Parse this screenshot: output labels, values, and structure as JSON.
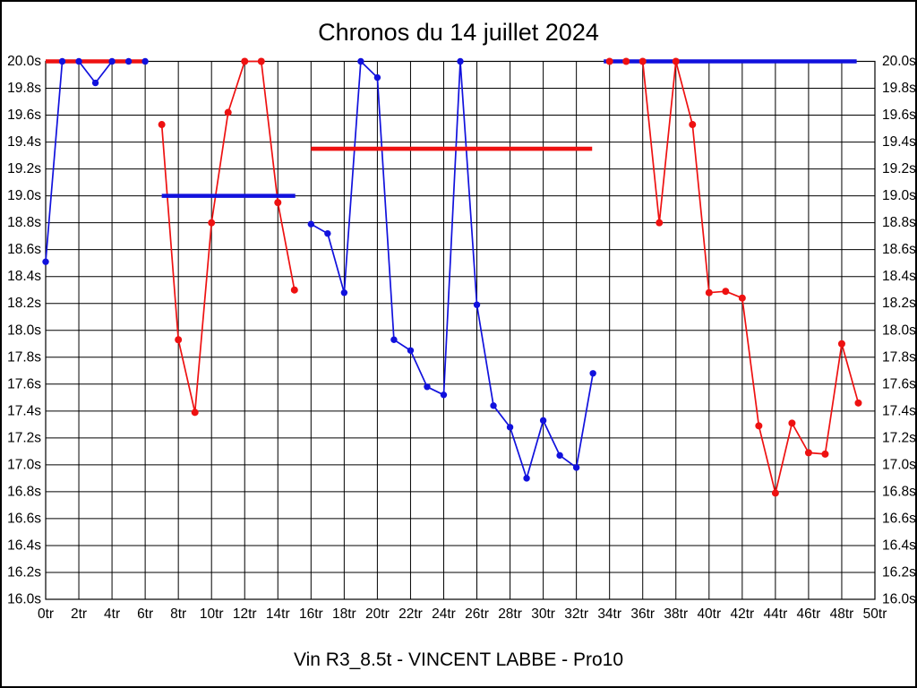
{
  "title": "Chronos du 14 juillet 2024",
  "footer": "Vin R3_8.5t - VINCENT LABBE - Pro10",
  "colors": {
    "blue": "#1111dd",
    "red": "#ee1111",
    "grid": "#000000",
    "background": "#ffffff"
  },
  "chart_data": {
    "type": "line",
    "title": "Chronos du 14 juillet 2024",
    "subtitle": "Vin R3_8.5t - VINCENT LABBE - Pro10",
    "x_unit": "tr",
    "y_unit": "s",
    "xlim": [
      0,
      50
    ],
    "ylim": [
      16.0,
      20.0
    ],
    "grid": {
      "x_step": 2,
      "y_step": 0.2,
      "shown": true
    },
    "x_ticks": [
      "0tr",
      "2tr",
      "4tr",
      "6tr",
      "8tr",
      "10tr",
      "12tr",
      "14tr",
      "16tr",
      "18tr",
      "20tr",
      "22tr",
      "24tr",
      "26tr",
      "28tr",
      "30tr",
      "32tr",
      "34tr",
      "36tr",
      "38tr",
      "40tr",
      "42tr",
      "44tr",
      "46tr",
      "48tr",
      "50tr"
    ],
    "y_ticks": [
      "20.0s",
      "19.8s",
      "19.6s",
      "19.4s",
      "19.2s",
      "19.0s",
      "18.8s",
      "18.6s",
      "18.4s",
      "18.2s",
      "18.0s",
      "17.8s",
      "17.6s",
      "17.4s",
      "17.2s",
      "17.0s",
      "16.8s",
      "16.6s",
      "16.4s",
      "16.2s",
      "16.0s"
    ],
    "series": [
      {
        "name": "blue-series",
        "color_key": "blue",
        "runs": [
          {
            "points": [
              [
                0,
                18.51
              ],
              [
                1,
                20.0
              ],
              [
                2,
                20.0
              ],
              [
                3,
                19.84
              ],
              [
                4,
                20.0
              ],
              [
                5,
                20.0
              ],
              [
                6,
                20.0
              ]
            ]
          },
          {
            "points": [
              [
                16,
                18.79
              ],
              [
                17,
                18.72
              ],
              [
                18,
                18.28
              ],
              [
                19,
                20.0
              ],
              [
                20,
                19.88
              ],
              [
                21,
                17.93
              ],
              [
                22,
                17.85
              ],
              [
                23,
                17.58
              ],
              [
                24,
                17.52
              ],
              [
                25,
                20.0
              ],
              [
                26,
                18.19
              ],
              [
                27,
                17.44
              ],
              [
                28,
                17.28
              ],
              [
                29,
                16.9
              ],
              [
                30,
                17.33
              ],
              [
                31,
                17.07
              ],
              [
                32,
                16.98
              ],
              [
                33,
                17.68
              ]
            ]
          }
        ]
      },
      {
        "name": "red-series",
        "color_key": "red",
        "runs": [
          {
            "points": [
              [
                7,
                19.53
              ],
              [
                8,
                17.93
              ],
              [
                9,
                17.39
              ],
              [
                10,
                18.8
              ],
              [
                11,
                19.62
              ],
              [
                12,
                20.0
              ],
              [
                13,
                20.0
              ],
              [
                14,
                18.95
              ],
              [
                15,
                18.3
              ]
            ]
          },
          {
            "points": [
              [
                34,
                20.0
              ],
              [
                35,
                20.0
              ],
              [
                36,
                20.0
              ],
              [
                37,
                18.8
              ],
              [
                38,
                20.0
              ],
              [
                39,
                19.53
              ],
              [
                40,
                18.28
              ],
              [
                41,
                18.29
              ],
              [
                42,
                18.24
              ],
              [
                43,
                17.29
              ],
              [
                44,
                16.79
              ],
              [
                45,
                17.31
              ],
              [
                46,
                17.09
              ],
              [
                47,
                17.08
              ],
              [
                48,
                17.9
              ],
              [
                49,
                17.46
              ]
            ]
          }
        ]
      }
    ],
    "reference_lines": [
      {
        "color_key": "red",
        "value": 20.0,
        "from": 0.0,
        "to": 6.15
      },
      {
        "color_key": "blue",
        "value": 19.0,
        "from": 7.0,
        "to": 15.05
      },
      {
        "color_key": "red",
        "value": 19.35,
        "from": 16.0,
        "to": 32.95
      },
      {
        "color_key": "blue",
        "value": 20.0,
        "from": 33.65,
        "to": 48.9
      }
    ],
    "legend": "none"
  }
}
